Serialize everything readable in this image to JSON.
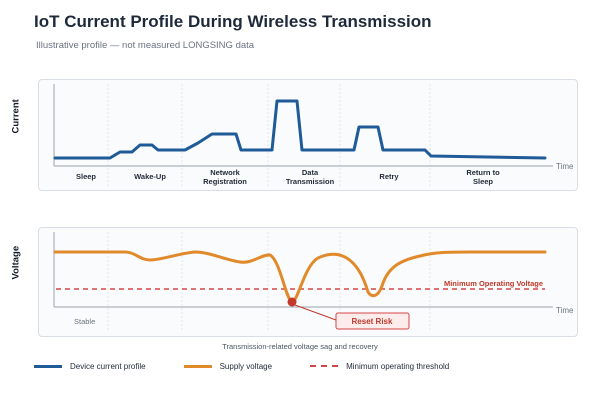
{
  "header": {
    "title": "IoT Current Profile During Wireless Transmission",
    "subtitle": "Illustrative profile — not measured LONGSING data"
  },
  "current_panel": {
    "ylabel": "Current",
    "x_end_label": "Time",
    "phases": [
      {
        "lines": [
          "Sleep"
        ]
      },
      {
        "lines": [
          "Wake-Up"
        ]
      },
      {
        "lines": [
          "Network",
          "Registration"
        ]
      },
      {
        "lines": [
          "Data",
          "Transmission"
        ]
      },
      {
        "lines": [
          "Retry"
        ]
      },
      {
        "lines": [
          "Return to",
          "Sleep"
        ]
      }
    ]
  },
  "voltage_panel": {
    "ylabel": "Voltage",
    "x_end_label": "Time",
    "stable_label": "Stable",
    "threshold_label": "Minimum Operating Voltage",
    "callout_label": "Reset Risk"
  },
  "caption": "Transmission-related voltage sag and recovery",
  "legend": [
    {
      "label": "Device current profile",
      "icon": "solid-line-blue"
    },
    {
      "label": "Supply voltage",
      "icon": "solid-line-orange"
    },
    {
      "label": "Minimum operating threshold",
      "icon": "dashed-line-red"
    }
  ],
  "colors": {
    "current_line": "#1f5b99",
    "voltage_line": "#e08a2c",
    "threshold": "#d64545",
    "callout_fill": "#fdecec",
    "reset_marker": "#c0392b",
    "grid": "#e3e7ec"
  }
}
